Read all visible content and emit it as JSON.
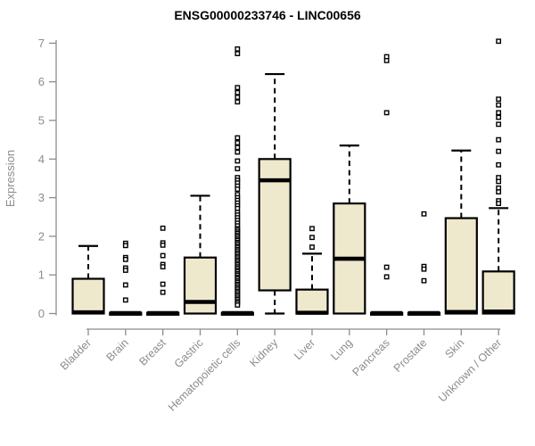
{
  "chart_data": {
    "type": "boxplot",
    "title": "ENSG00000233746 - LINC00656",
    "ylabel": "Expression",
    "xlabel": "",
    "ylim": [
      0,
      7
    ],
    "y_ticks": [
      0,
      1,
      2,
      3,
      4,
      5,
      6,
      7
    ],
    "grid": false,
    "legend": "none",
    "colors": {
      "box_fill": "#EEE8CD",
      "box_border": "#000000",
      "median": "#000000",
      "whisker": "#000000",
      "outlier_stroke": "#000000",
      "outlier_fill": "#FFFFFF",
      "axis": "#8C8C8C",
      "title": "#000000",
      "background": "#FFFFFF"
    },
    "categories": [
      "Bladder",
      "Brain",
      "Breast",
      "Gastric",
      "Hematopoietic cells",
      "Kidney",
      "Liver",
      "Lung",
      "Pancreas",
      "Prostate",
      "Skin",
      "Unknown / Other"
    ],
    "series": [
      {
        "label": "Bladder",
        "whisker_low": 0,
        "q1": 0,
        "median": 0.03,
        "q3": 0.9,
        "whisker_high": 1.75,
        "outliers": []
      },
      {
        "label": "Brain",
        "whisker_low": 0,
        "q1": 0,
        "median": 0.01,
        "q3": 0.02,
        "whisker_high": 0.02,
        "outliers": [
          1.82,
          1.76,
          1.45,
          1.4,
          1.18,
          1.12,
          0.74,
          0.35
        ]
      },
      {
        "label": "Breast",
        "whisker_low": 0,
        "q1": 0,
        "median": 0.01,
        "q3": 0.02,
        "whisker_high": 0.02,
        "outliers": [
          2.21,
          1.83,
          1.77,
          1.5,
          1.27,
          1.21,
          0.76,
          0.55
        ]
      },
      {
        "label": "Gastric",
        "whisker_low": 0,
        "q1": 0,
        "median": 0.3,
        "q3": 1.45,
        "whisker_high": 3.05,
        "outliers": []
      },
      {
        "label": "Hematopoietic cells",
        "whisker_low": 0,
        "q1": 0,
        "median": 0.01,
        "q3": 0.02,
        "whisker_high": 0.02,
        "outliers": [
          6.85,
          6.73,
          5.85,
          5.72,
          5.6,
          5.48,
          4.55,
          4.42,
          4.3,
          4.18,
          3.95,
          3.75,
          3.52,
          3.45,
          3.38,
          3.3,
          3.22,
          3.08,
          3.0,
          2.93,
          2.86,
          2.79,
          2.72,
          2.62,
          2.55,
          2.48,
          2.41,
          2.34,
          2.27,
          2.2,
          2.16,
          2.11,
          2.07,
          2.02,
          1.98,
          1.93,
          1.89,
          1.84,
          1.8,
          1.75,
          1.71,
          1.66,
          1.62,
          1.57,
          1.53,
          1.48,
          1.44,
          1.39,
          1.35,
          1.3,
          1.26,
          1.21,
          1.17,
          1.12,
          1.08,
          1.03,
          0.99,
          0.94,
          0.9,
          0.85,
          0.81,
          0.76,
          0.72,
          0.67,
          0.63,
          0.58,
          0.54,
          0.49,
          0.45,
          0.4,
          0.36,
          0.31,
          0.27,
          0.22
        ]
      },
      {
        "label": "Kidney",
        "whisker_low": 0,
        "q1": 0.6,
        "median": 3.45,
        "q3": 4.0,
        "whisker_high": 6.2,
        "outliers": []
      },
      {
        "label": "Liver",
        "whisker_low": 0,
        "q1": 0,
        "median": 0.02,
        "q3": 0.62,
        "whisker_high": 1.55,
        "outliers": [
          2.2,
          1.97,
          1.72
        ]
      },
      {
        "label": "Lung",
        "whisker_low": 0,
        "q1": 0,
        "median": 1.42,
        "q3": 2.85,
        "whisker_high": 4.35,
        "outliers": []
      },
      {
        "label": "Pancreas",
        "whisker_low": 0,
        "q1": 0,
        "median": 0.01,
        "q3": 0.02,
        "whisker_high": 0.02,
        "outliers": [
          6.65,
          6.55,
          5.2,
          1.2,
          0.95
        ]
      },
      {
        "label": "Prostate",
        "whisker_low": 0,
        "q1": 0,
        "median": 0.01,
        "q3": 0.02,
        "whisker_high": 0.02,
        "outliers": [
          2.58,
          1.22,
          1.15,
          0.85
        ]
      },
      {
        "label": "Skin",
        "whisker_low": 0,
        "q1": 0,
        "median": 0.04,
        "q3": 2.47,
        "whisker_high": 4.22,
        "outliers": []
      },
      {
        "label": "Unknown / Other",
        "whisker_low": 0,
        "q1": 0,
        "median": 0.05,
        "q3": 1.09,
        "whisker_high": 2.73,
        "outliers": [
          7.05,
          5.55,
          5.4,
          5.2,
          5.08,
          4.9,
          4.5,
          4.2,
          3.85,
          3.52,
          3.42,
          3.25,
          3.15,
          2.92,
          2.85
        ]
      }
    ]
  }
}
